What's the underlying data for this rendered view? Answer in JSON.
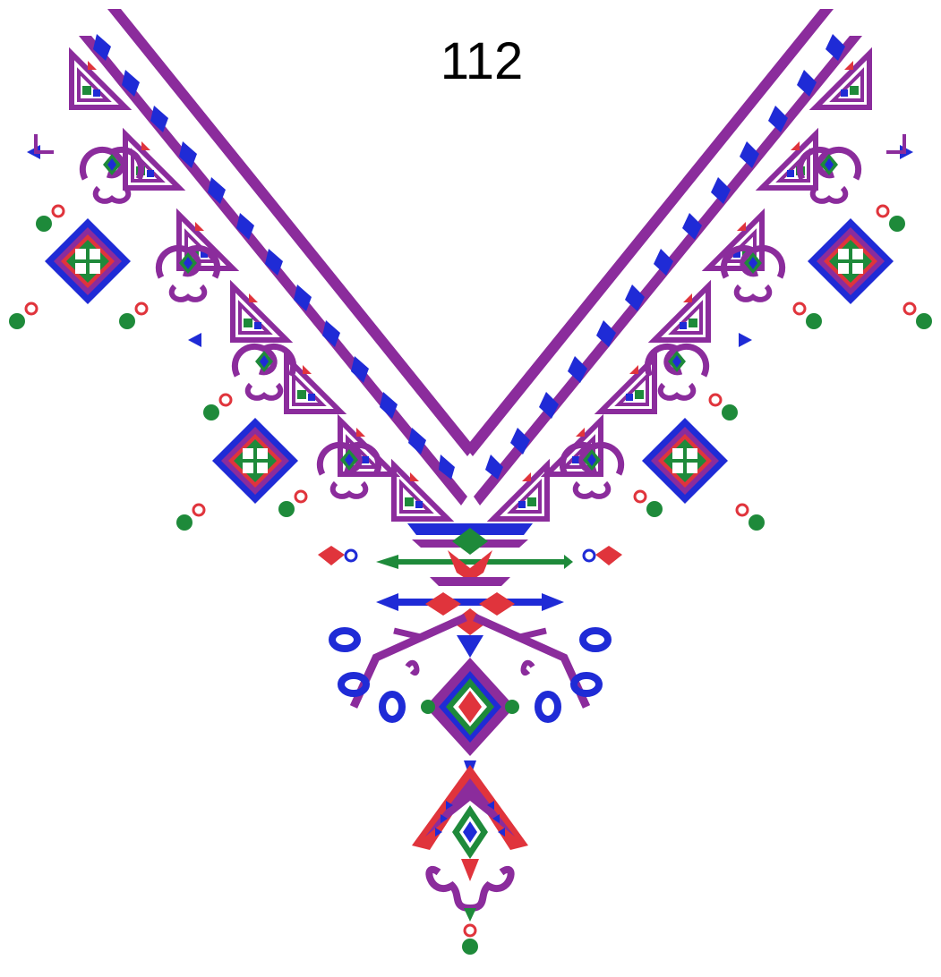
{
  "design": {
    "number": "112",
    "description_icon": "v-neck-embroidery-pattern",
    "colors": {
      "purple": "#8B2C9C",
      "purple_light": "#B04FC2",
      "blue": "#1F2BD6",
      "red": "#E0343C",
      "green": "#1E8A3A",
      "white": "#FFFFFF"
    }
  }
}
